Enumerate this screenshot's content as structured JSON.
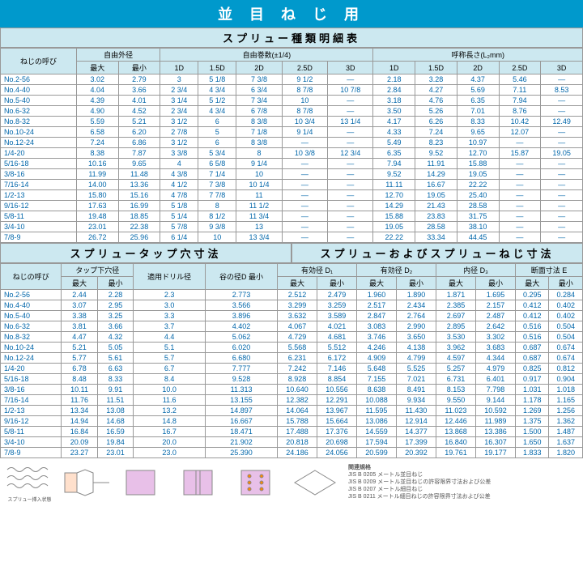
{
  "title": "並 目 ね じ 用",
  "subtitle1": "スプリュー種類明細表",
  "subtitle2_left": "スプリュータップ穴寸法",
  "subtitle2_right": "スプリューおよびスプリューねじ寸法",
  "colors": {
    "header_bg": "#cce8f0",
    "title_bg": "#0099cc",
    "text": "#0066aa",
    "border": "#999"
  },
  "t1_headers": {
    "col1": "ねじの呼び",
    "g1": "自由外径",
    "g1_sub": [
      "最大",
      "最小"
    ],
    "g2": "自由巻数(±1/4)",
    "g2_sub": [
      "1D",
      "1.5D",
      "2D",
      "2.5D",
      "3D"
    ],
    "g3": "呼称長さ(L₂mm)",
    "g3_sub": [
      "1D",
      "1.5D",
      "2D",
      "2.5D",
      "3D"
    ]
  },
  "t1_rows": [
    [
      "No.2-56",
      "3.02",
      "2.79",
      "3",
      "5 1/8",
      "7 3/8",
      "9 1/2",
      "―",
      "2.18",
      "3.28",
      "4.37",
      "5.46",
      "―"
    ],
    [
      "No.4-40",
      "4.04",
      "3.66",
      "2 3/4",
      "4 3/4",
      "6 3/4",
      "8 7/8",
      "10 7/8",
      "2.84",
      "4.27",
      "5.69",
      "7.11",
      "8.53"
    ],
    [
      "No.5-40",
      "4.39",
      "4.01",
      "3 1/4",
      "5 1/2",
      "7 3/4",
      "10",
      "―",
      "3.18",
      "4.76",
      "6.35",
      "7.94",
      "―"
    ],
    [
      "No.6-32",
      "4.90",
      "4.52",
      "2 3/4",
      "4 3/4",
      "6 7/8",
      "8 7/8",
      "―",
      "3.50",
      "5.26",
      "7.01",
      "8.76",
      "―"
    ],
    [
      "No.8-32",
      "5.59",
      "5.21",
      "3 1/2",
      "6",
      "8 3/8",
      "10 3/4",
      "13 1/4",
      "4.17",
      "6.26",
      "8.33",
      "10.42",
      "12.49"
    ],
    [
      "No.10-24",
      "6.58",
      "6.20",
      "2 7/8",
      "5",
      "7 1/8",
      "9 1/4",
      "―",
      "4.33",
      "7.24",
      "9.65",
      "12.07",
      "―"
    ],
    [
      "No.12-24",
      "7.24",
      "6.86",
      "3 1/2",
      "6",
      "8 3/8",
      "―",
      "―",
      "5.49",
      "8.23",
      "10.97",
      "―",
      "―"
    ],
    [
      "1/4-20",
      "8.38",
      "7.87",
      "3 3/8",
      "5 3/4",
      "8",
      "10 3/8",
      "12 3/4",
      "6.35",
      "9.52",
      "12.70",
      "15.87",
      "19.05"
    ],
    [
      "5/16-18",
      "10.16",
      "9.65",
      "4",
      "6 5/8",
      "9 1/4",
      "―",
      "―",
      "7.94",
      "11.91",
      "15.88",
      "―",
      "―"
    ],
    [
      "3/8-16",
      "11.99",
      "11.48",
      "4 3/8",
      "7 1/4",
      "10",
      "―",
      "―",
      "9.52",
      "14.29",
      "19.05",
      "―",
      "―"
    ],
    [
      "7/16-14",
      "14.00",
      "13.36",
      "4 1/2",
      "7 3/8",
      "10 1/4",
      "―",
      "―",
      "11.11",
      "16.67",
      "22.22",
      "―",
      "―"
    ],
    [
      "1/2-13",
      "15.80",
      "15.16",
      "4 7/8",
      "7 7/8",
      "11",
      "―",
      "―",
      "12.70",
      "19.05",
      "25.40",
      "―",
      "―"
    ],
    [
      "9/16-12",
      "17.63",
      "16.99",
      "5 1/8",
      "8",
      "11 1/2",
      "―",
      "―",
      "14.29",
      "21.43",
      "28.58",
      "―",
      "―"
    ],
    [
      "5/8-11",
      "19.48",
      "18.85",
      "5 1/4",
      "8 1/2",
      "11 3/4",
      "―",
      "―",
      "15.88",
      "23.83",
      "31.75",
      "―",
      "―"
    ],
    [
      "3/4-10",
      "23.01",
      "22.38",
      "5 7/8",
      "9 3/8",
      "13",
      "―",
      "―",
      "19.05",
      "28.58",
      "38.10",
      "―",
      "―"
    ],
    [
      "7/8-9",
      "26.72",
      "25.96",
      "6 1/4",
      "10",
      "13 3/4",
      "―",
      "―",
      "22.22",
      "33.34",
      "44.45",
      "―",
      "―"
    ]
  ],
  "t2_headers": {
    "col1": "ねじの呼び",
    "g1": "タップ下穴径",
    "g1_sub": [
      "最大",
      "最小"
    ],
    "g2": "適用ドリル径",
    "g3": "谷の径D 最小",
    "g4": "有効径 D₁",
    "g4_sub": [
      "最大",
      "最小"
    ],
    "g5": "有効径 D₂",
    "g5_sub": [
      "最大",
      "最小"
    ],
    "g6": "内径 D₃",
    "g6_sub": [
      "最大",
      "最小"
    ],
    "g7": "断面寸法 E",
    "g7_sub": [
      "最大",
      "最小"
    ]
  },
  "t2_rows": [
    [
      "No.2-56",
      "2.44",
      "2.28",
      "2.3",
      "2.773",
      "2.512",
      "2.479",
      "1.960",
      "1.890",
      "1.871",
      "1.695",
      "0.295",
      "0.284"
    ],
    [
      "No.4-40",
      "3.07",
      "2.95",
      "3.0",
      "3.566",
      "3.299",
      "3.259",
      "2.517",
      "2.434",
      "2.385",
      "2.157",
      "0.412",
      "0.402"
    ],
    [
      "No.5-40",
      "3.38",
      "3.25",
      "3.3",
      "3.896",
      "3.632",
      "3.589",
      "2.847",
      "2.764",
      "2.697",
      "2.487",
      "0.412",
      "0.402"
    ],
    [
      "No.6-32",
      "3.81",
      "3.66",
      "3.7",
      "4.402",
      "4.067",
      "4.021",
      "3.083",
      "2.990",
      "2.895",
      "2.642",
      "0.516",
      "0.504"
    ],
    [
      "No.8-32",
      "4.47",
      "4.32",
      "4.4",
      "5.062",
      "4.729",
      "4.681",
      "3.746",
      "3.650",
      "3.530",
      "3.302",
      "0.516",
      "0.504"
    ],
    [
      "No.10-24",
      "5.21",
      "5.05",
      "5.1",
      "6.020",
      "5.568",
      "5.512",
      "4.246",
      "4.138",
      "3.962",
      "3.683",
      "0.687",
      "0.674"
    ],
    [
      "No.12-24",
      "5.77",
      "5.61",
      "5.7",
      "6.680",
      "6.231",
      "6.172",
      "4.909",
      "4.799",
      "4.597",
      "4.344",
      "0.687",
      "0.674"
    ],
    [
      "1/4-20",
      "6.78",
      "6.63",
      "6.7",
      "7.777",
      "7.242",
      "7.146",
      "5.648",
      "5.525",
      "5.257",
      "4.979",
      "0.825",
      "0.812"
    ],
    [
      "5/16-18",
      "8.48",
      "8.33",
      "8.4",
      "9.528",
      "8.928",
      "8.854",
      "7.155",
      "7.021",
      "6.731",
      "6.401",
      "0.917",
      "0.904"
    ],
    [
      "3/8-16",
      "10.11",
      "9.91",
      "10.0",
      "11.313",
      "10.640",
      "10.556",
      "8.638",
      "8.491",
      "8.153",
      "7.798",
      "1.031",
      "1.018"
    ],
    [
      "7/16-14",
      "11.76",
      "11.51",
      "11.6",
      "13.155",
      "12.382",
      "12.291",
      "10.088",
      "9.934",
      "9.550",
      "9.144",
      "1.178",
      "1.165"
    ],
    [
      "1/2-13",
      "13.34",
      "13.08",
      "13.2",
      "14.897",
      "14.064",
      "13.967",
      "11.595",
      "11.430",
      "11.023",
      "10.592",
      "1.269",
      "1.256"
    ],
    [
      "9/16-12",
      "14.94",
      "14.68",
      "14.8",
      "16.667",
      "15.788",
      "15.664",
      "13.086",
      "12.914",
      "12.446",
      "11.989",
      "1.375",
      "1.362"
    ],
    [
      "5/8-11",
      "16.84",
      "16.59",
      "16.7",
      "18.471",
      "17.488",
      "17.376",
      "14.559",
      "14.377",
      "13.868",
      "13.386",
      "1.500",
      "1.487"
    ],
    [
      "3/4-10",
      "20.09",
      "19.84",
      "20.0",
      "21.902",
      "20.818",
      "20.698",
      "17.594",
      "17.399",
      "16.840",
      "16.307",
      "1.650",
      "1.637"
    ],
    [
      "7/8-9",
      "23.27",
      "23.01",
      "23.0",
      "25.390",
      "24.186",
      "24.056",
      "20.599",
      "20.392",
      "19.761",
      "19.177",
      "1.833",
      "1.820"
    ]
  ],
  "standards": {
    "title": "関連規格",
    "items": [
      "JIS B 0205 メートル並目ねじ",
      "JIS B 0209 メートル並目ねじの許容限界寸法および公差",
      "JIS B 0207 メートル細目ねじ",
      "JIS B 0211 メートル細目ねじの許容限界寸法および公差"
    ]
  },
  "diag_label": "スプリュー挿入状態"
}
